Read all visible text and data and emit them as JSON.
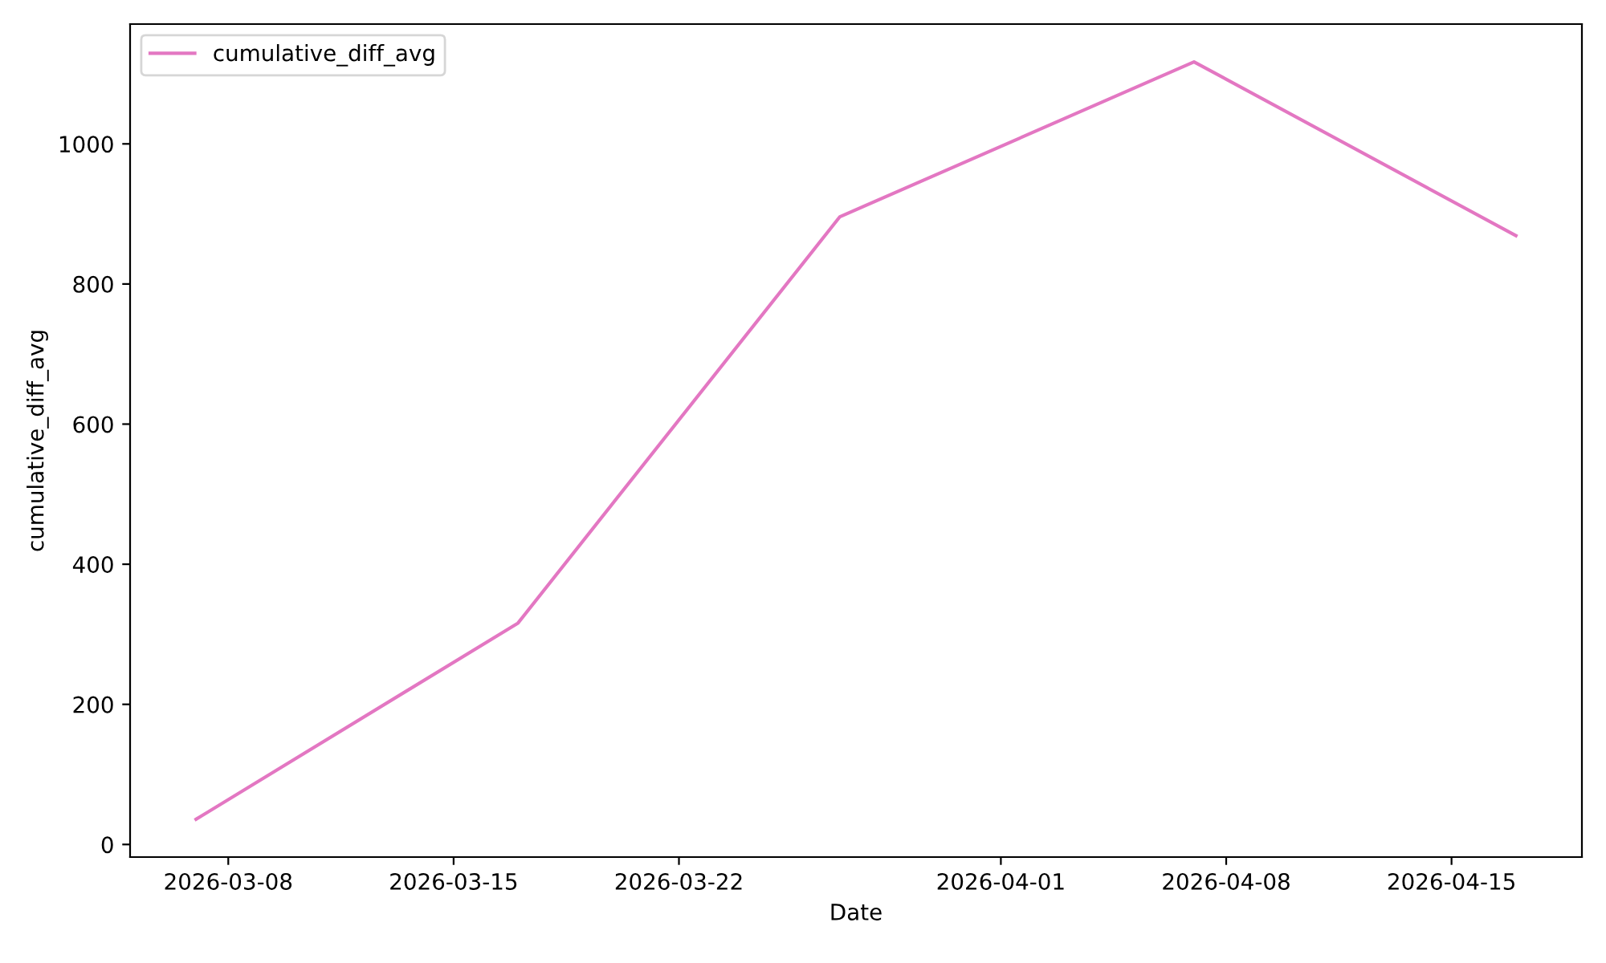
{
  "chart_data": {
    "type": "line",
    "xlabel": "Date",
    "ylabel": "cumulative_diff_avg",
    "x": [
      "2026-03-07",
      "2026-03-17",
      "2026-03-27",
      "2026-04-07",
      "2026-04-17"
    ],
    "series": [
      {
        "name": "cumulative_diff_avg",
        "color": "#e377c2",
        "values": [
          36,
          316,
          896,
          1117,
          869
        ]
      }
    ],
    "xlim": [
      "2026-03-04T22:48",
      "2026-04-19T01:12"
    ],
    "xticks": [
      {
        "value": "2026-03-08",
        "label": "2026-03-08"
      },
      {
        "value": "2026-03-15",
        "label": "2026-03-15"
      },
      {
        "value": "2026-03-22",
        "label": "2026-03-22"
      },
      {
        "value": "2026-04-01",
        "label": "2026-04-01"
      },
      {
        "value": "2026-04-08",
        "label": "2026-04-08"
      },
      {
        "value": "2026-04-15",
        "label": "2026-04-15"
      }
    ],
    "ylim": [
      -18,
      1171
    ],
    "yticks": [
      0,
      200,
      400,
      600,
      800,
      1000
    ],
    "grid": false,
    "legend": "top left",
    "marker": "none",
    "line_style": "solid"
  }
}
